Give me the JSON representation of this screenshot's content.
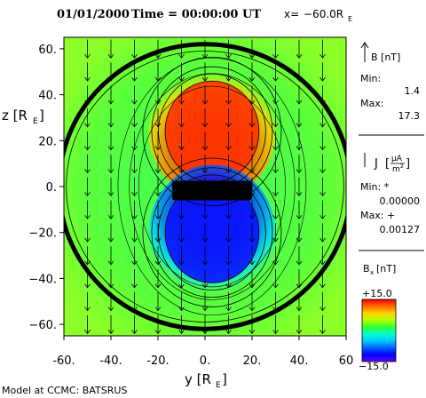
{
  "header": {
    "date": "01/01/2000",
    "time_label": "Time = 00:00:00 UT",
    "position_prefix": "x=",
    "position_value": "−60.0R",
    "position_sub": "E"
  },
  "footer": {
    "credit": "Model at CCMC: BATSRUS"
  },
  "legend_vector": {
    "label": "B [nT]",
    "min_label": "Min:",
    "min_value": "1.4",
    "max_label": "Max:",
    "max_value": "17.3"
  },
  "legend_current": {
    "label_prefix": "J",
    "unit_num": "μA",
    "unit_den": "m",
    "unit_den_sup": "2",
    "min_label": "Min: *",
    "min_value": "0.00000",
    "max_label": "Max: +",
    "max_value": "0.00127"
  },
  "colorbar": {
    "label": "B",
    "label_sub": "x",
    "label_unit": "[nT]",
    "top_value": "+15.0",
    "bottom_value": "−15.0",
    "colors": [
      "#ff0000",
      "#ff6a00",
      "#ffd200",
      "#b4ff00",
      "#32ff32",
      "#00ffc8",
      "#00c8ff",
      "#0064ff",
      "#0000ff",
      "#6400ff"
    ]
  },
  "chart_data": {
    "type": "heatmap",
    "title": "",
    "xlabel": "y [R",
    "xlabel_sub": "E",
    "ylabel": "z [R",
    "ylabel_sub": "E",
    "xlim": [
      -60,
      60
    ],
    "ylim": [
      -65,
      65
    ],
    "x_ticks": [
      -60,
      -40,
      -20,
      0,
      20,
      40,
      60
    ],
    "x_tick_labels": [
      "-60.",
      "-40.",
      "-20.",
      "0.",
      "20.",
      "40.",
      "60"
    ],
    "y_ticks": [
      60,
      40,
      20,
      0,
      -20,
      -40,
      -60
    ],
    "y_tick_labels": [
      "60.",
      "40.",
      "20.",
      "0.",
      "−20.",
      "−40.",
      "−60."
    ],
    "color_scale": [
      -15,
      15
    ],
    "background_value": 0,
    "lobes": [
      {
        "name": "north",
        "center": [
          3,
          24
        ],
        "radius": 19,
        "value": 15
      },
      {
        "name": "south",
        "center": [
          3,
          -20
        ],
        "radius": 19,
        "value": -15
      }
    ],
    "boundary_circle": {
      "center": [
        0,
        0
      ],
      "radius": 62
    },
    "vector_grid_step": 10,
    "vector_direction": "down"
  }
}
